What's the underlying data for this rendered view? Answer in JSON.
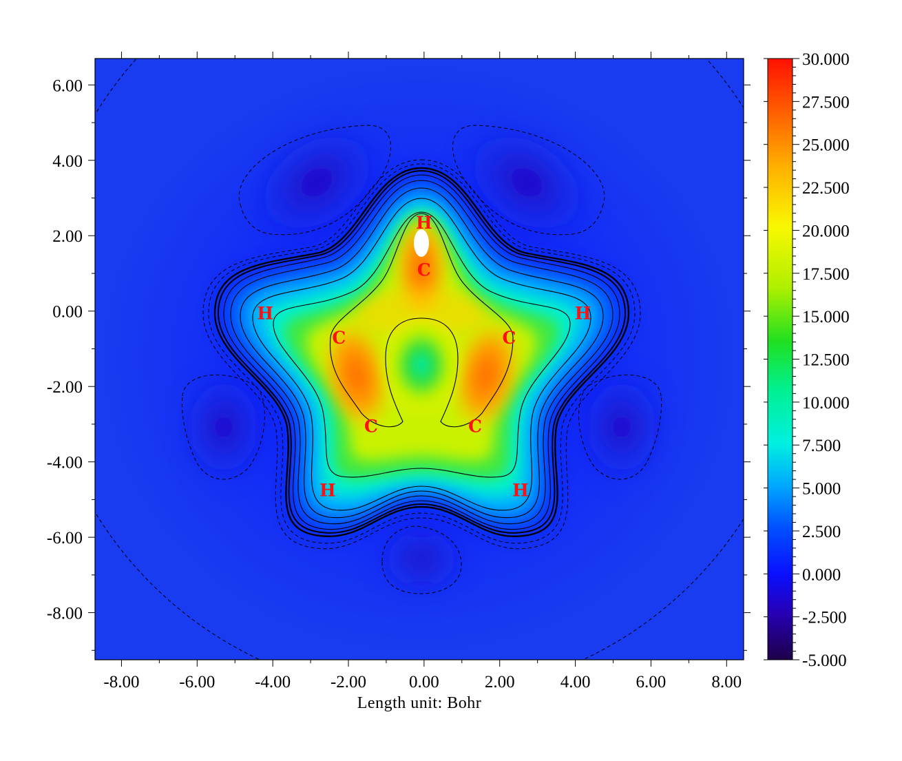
{
  "chart_data": {
    "type": "heatmap",
    "title": "",
    "xlabel": "Length unit: Bohr",
    "ylabel": "",
    "xlim": [
      -8.7,
      8.45
    ],
    "ylim": [
      -9.25,
      6.7
    ],
    "x_ticks": [
      -8,
      -6,
      -4,
      -2,
      0,
      2,
      4,
      6,
      8
    ],
    "x_tick_labels": [
      "-8.00",
      "-6.00",
      "-4.00",
      "-2.00",
      "0.00",
      "2.00",
      "4.00",
      "6.00",
      "8.00"
    ],
    "y_ticks": [
      6,
      4,
      2,
      0,
      -2,
      -4,
      -6,
      -8
    ],
    "y_tick_labels": [
      "6.00",
      "4.00",
      "2.00",
      "0.00",
      "-2.00",
      "-4.00",
      "-6.00",
      "-8.00"
    ],
    "colorbar": {
      "min": -5.0,
      "max": 30.0,
      "ticks": [
        30,
        27.5,
        25,
        22.5,
        20,
        17.5,
        15,
        12.5,
        10,
        7.5,
        5,
        2.5,
        0,
        -2.5,
        -5
      ],
      "tick_labels": [
        "30.000",
        "27.500",
        "25.000",
        "22.500",
        "20.000",
        "17.500",
        "15.000",
        "12.500",
        "10.000",
        "7.500",
        "5.000",
        "2.500",
        "0.000",
        "-2.500",
        "-5.000"
      ],
      "colors": [
        "#1e0048",
        "#2600b8",
        "#0a10ff",
        "#0050ff",
        "#00a8ff",
        "#00f0e0",
        "#00f090",
        "#20e020",
        "#b0f000",
        "#f8f800",
        "#ffb000",
        "#ff6000",
        "#ff1000"
      ]
    },
    "atoms": [
      {
        "label": "H",
        "x": 0.0,
        "y": 2.35
      },
      {
        "label": "C",
        "x": 0.0,
        "y": 1.1
      },
      {
        "label": "H",
        "x": -4.2,
        "y": -0.05
      },
      {
        "label": "H",
        "x": 4.2,
        "y": -0.05
      },
      {
        "label": "C",
        "x": -2.25,
        "y": -0.7
      },
      {
        "label": "C",
        "x": 2.25,
        "y": -0.7
      },
      {
        "label": "C",
        "x": -1.4,
        "y": -3.05
      },
      {
        "label": "C",
        "x": 1.35,
        "y": -3.05
      },
      {
        "label": "H",
        "x": -2.55,
        "y": -4.75
      },
      {
        "label": "H",
        "x": 2.55,
        "y": -4.75
      }
    ],
    "grid": false,
    "legend": "colorbar-right"
  }
}
